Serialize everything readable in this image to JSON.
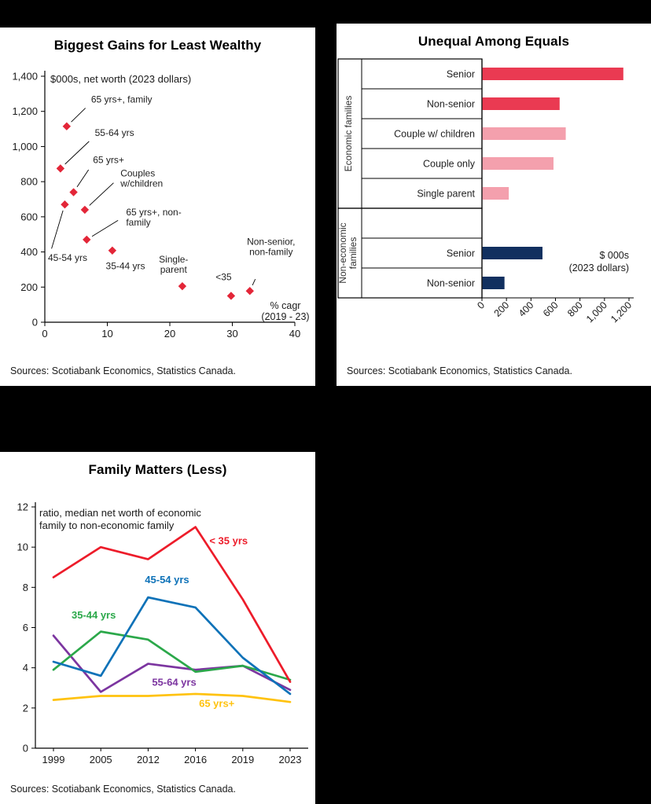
{
  "page": {
    "background_color": "#000000",
    "panel_color": "#ffffff"
  },
  "panels": [
    {
      "sources": "Sources: Scotiabank Economics, Statistics Canada."
    },
    {
      "sources": "Sources: Scotiabank Economics, Statistics Canada."
    },
    {
      "sources": "Sources: Scotiabank Economics, Statistics Canada."
    }
  ],
  "chart_data": [
    {
      "type": "scatter",
      "title": "Biggest Gains for Least Wealthy",
      "annotation": "$000s, net worth  (2023 dollars)",
      "xlabel": "% cagr\n(2019 - 23)",
      "xlim": [
        0,
        40
      ],
      "ylim": [
        0,
        1400
      ],
      "xticks": [
        0,
        10,
        20,
        30,
        40
      ],
      "yticks": [
        0,
        200,
        400,
        600,
        800,
        1000,
        1200,
        1400
      ],
      "marker_color": "#e32638",
      "points": [
        {
          "label": "65 yrs+, family",
          "x": 3.5,
          "y": 1115,
          "lx": 7.4,
          "ly": 1250,
          "anchor": "start",
          "leader": true,
          "loff": 10
        },
        {
          "label": "55-64 yrs",
          "x": 2.5,
          "y": 875,
          "lx": 8.0,
          "ly": 1060,
          "anchor": "start",
          "leader": true,
          "loff": 10
        },
        {
          "label": "65 yrs+",
          "x": 4.6,
          "y": 740,
          "lx": 7.7,
          "ly": 905,
          "anchor": "start",
          "leader": true,
          "loff": 10
        },
        {
          "label": "45-54 yrs",
          "x": 3.2,
          "y": 670,
          "lx": 0.5,
          "ly": 350,
          "anchor": "start",
          "leader": true,
          "loff": 16
        },
        {
          "label": "Couples\nw/children",
          "x": 6.4,
          "y": 640,
          "lx": 12.1,
          "ly": 830,
          "anchor": "start",
          "leader": true,
          "loff": 12
        },
        {
          "label": "65 yrs+, non-\nfamily",
          "x": 6.7,
          "y": 470,
          "lx": 13.0,
          "ly": 608,
          "anchor": "start",
          "leader": true,
          "loff": 12
        },
        {
          "label": "35-44 yrs",
          "x": 10.8,
          "y": 408,
          "lx": 12.9,
          "ly": 302,
          "anchor": "middle",
          "leader": false
        },
        {
          "label": "Single-\nparent",
          "x": 22,
          "y": 205,
          "lx": 20.6,
          "ly": 340,
          "anchor": "middle",
          "leader": false
        },
        {
          "label": "<35",
          "x": 29.8,
          "y": 150,
          "lx": 28.6,
          "ly": 240,
          "anchor": "middle",
          "leader": false
        },
        {
          "label": "Non-senior,\nnon-family",
          "x": 32.8,
          "y": 178,
          "lx": 36.2,
          "ly": 440,
          "anchor": "middle",
          "leader": true,
          "loff": 48
        }
      ]
    },
    {
      "type": "bar",
      "orientation": "horizontal",
      "title": "Unequal Among Equals",
      "annotation": "$ 000s\n(2023 dollars)",
      "xlim": [
        0,
        1200
      ],
      "xticks": [
        0,
        200,
        400,
        600,
        800,
        1000,
        1200
      ],
      "groups": [
        {
          "label": "Economic families",
          "rows": [
            {
              "label": "Senior",
              "value": 1150,
              "color": "#ea3a52"
            },
            {
              "label": "Non-senior",
              "value": 630,
              "color": "#ea3a52"
            },
            {
              "label": "Couple w/ children",
              "value": 680,
              "color": "#f4a0ad"
            },
            {
              "label": "Couple only",
              "value": 580,
              "color": "#f4a0ad"
            },
            {
              "label": "Single parent",
              "value": 215,
              "color": "#f4a0ad"
            }
          ]
        },
        {
          "label": "Non-economic\nfamilies",
          "rows": [
            {
              "label": "",
              "value": null,
              "color": null
            },
            {
              "label": "Senior",
              "value": 490,
              "color": "#11305f"
            },
            {
              "label": "Non-senior",
              "value": 180,
              "color": "#11305f"
            }
          ]
        }
      ]
    },
    {
      "type": "line",
      "title": "Family Matters (Less)",
      "annotation": "ratio, median net worth of economic\nfamily to non-economic family",
      "categories": [
        "1999",
        "2005",
        "2012",
        "2016",
        "2019",
        "2023"
      ],
      "ylim": [
        0,
        12
      ],
      "yticks": [
        0,
        2,
        4,
        6,
        8,
        10,
        12
      ],
      "series": [
        {
          "name": "< 35 yrs",
          "color": "#ed1c2a",
          "values": [
            8.5,
            10.0,
            9.4,
            11.0,
            7.4,
            3.3
          ],
          "label_x": 3.7,
          "label_y": 10.15
        },
        {
          "name": "45-54 yrs",
          "color": "#0e72b8",
          "values": [
            4.3,
            3.6,
            7.5,
            7.0,
            4.5,
            2.7
          ],
          "label_x": 2.4,
          "label_y": 8.2
        },
        {
          "name": "35-44 yrs",
          "color": "#2ba84a",
          "values": [
            3.9,
            5.8,
            5.4,
            3.8,
            4.1,
            3.4
          ],
          "label_x": 0.85,
          "label_y": 6.45
        },
        {
          "name": "55-64 yrs",
          "color": "#7c35a0",
          "values": [
            5.6,
            2.8,
            4.2,
            3.9,
            4.1,
            2.9
          ],
          "label_x": 2.55,
          "label_y": 3.1
        },
        {
          "name": "65 yrs+",
          "color": "#ffc20e",
          "values": [
            2.4,
            2.6,
            2.6,
            2.7,
            2.6,
            2.3
          ],
          "label_x": 3.45,
          "label_y": 2.05
        }
      ]
    }
  ]
}
